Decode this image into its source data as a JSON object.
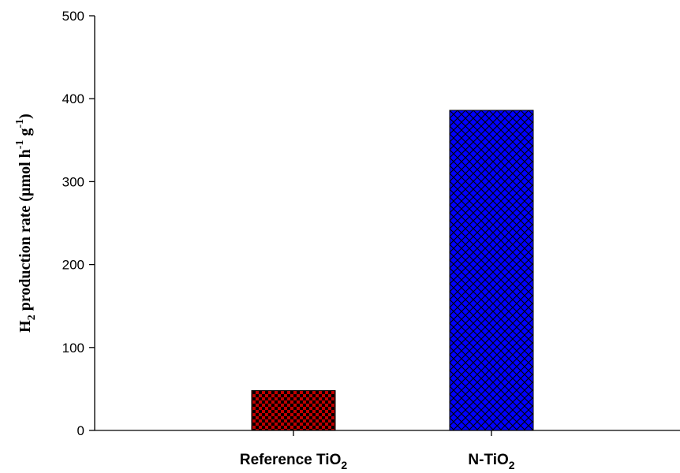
{
  "chart_data": {
    "type": "bar",
    "title": "",
    "xlabel": "",
    "ylabel": {
      "prefix": "H",
      "sub": "2",
      "mid1": " production rate (µmol h",
      "sup1": "-1",
      "mid2": " g",
      "sup2": "-1",
      "suffix": ")"
    },
    "ylim": [
      0,
      500
    ],
    "yticks": [
      0,
      100,
      200,
      300,
      400,
      500
    ],
    "grid": false,
    "legend": "none",
    "categories": [
      {
        "main": "Reference TiO",
        "sub": "2"
      },
      {
        "main": "N-TiO",
        "sub": "2"
      }
    ],
    "values": [
      48,
      386
    ],
    "colors": {
      "reference": "#c00000",
      "reference_pattern": "#000000",
      "ntio2": "#0000ff",
      "ntio2_pattern": "#000000"
    },
    "patterns": [
      "checkerboard",
      "crosshatch"
    ]
  }
}
